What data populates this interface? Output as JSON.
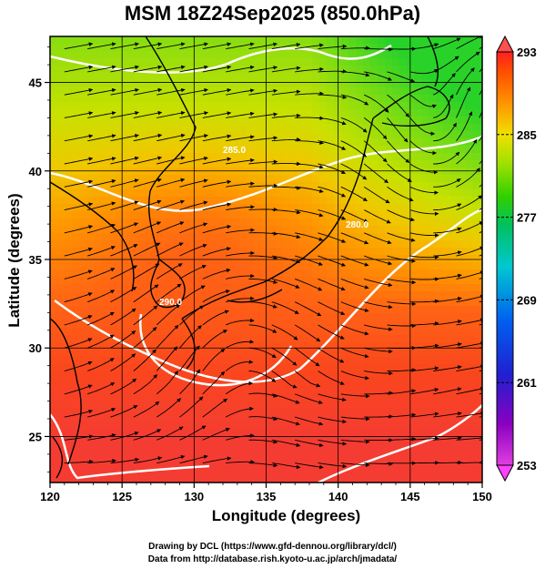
{
  "title": "MSM 18Z24Sep2025 (850.0hPa)",
  "xlabel": "Longitude (degrees)",
  "ylabel": "Latitude  (degrees)",
  "credits": [
    "Drawing by DCL (https://www.gfd-dennou.org/library/dcl/)",
    "Data from http://database.rish.kyoto-u.ac.jp/arch/jmadata/"
  ],
  "chart_data": {
    "type": "heatmap",
    "xlim": [
      120,
      150
    ],
    "ylim": [
      22.4,
      47.6
    ],
    "x_ticks": [
      120,
      125,
      130,
      135,
      140,
      145,
      150
    ],
    "y_ticks": [
      25,
      30,
      35,
      40,
      45
    ],
    "x_tick_labels": [
      "120",
      "125",
      "130",
      "135",
      "140",
      "145",
      "150"
    ],
    "y_tick_labels": [
      "25",
      "30",
      "35",
      "40",
      "45"
    ],
    "grid": true,
    "colorbar": {
      "min": 253,
      "max": 293,
      "ticks": [
        253,
        261,
        269,
        277,
        285,
        293
      ],
      "tick_labels": [
        "253",
        "261",
        "269",
        "277",
        "285",
        "293"
      ]
    },
    "contours": [
      {
        "value": 280,
        "label": "280.0"
      },
      {
        "value": 285,
        "label": "285.0"
      },
      {
        "value": 290,
        "label": "290.0"
      }
    ]
  }
}
